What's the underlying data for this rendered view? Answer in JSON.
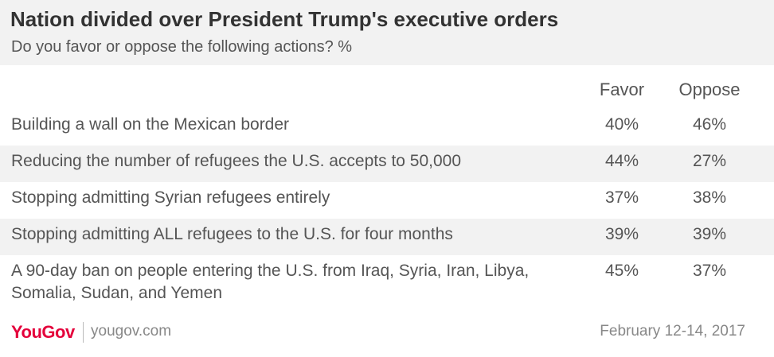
{
  "header": {
    "title": "Nation divided over President Trump's executive orders",
    "subtitle": "Do you favor or oppose the following actions? %"
  },
  "chart_data": {
    "type": "table",
    "columns": [
      "Favor",
      "Oppose"
    ],
    "rows": [
      {
        "label": "Building a wall on the Mexican border",
        "favor": "40%",
        "oppose": "46%"
      },
      {
        "label": "Reducing the number of refugees the U.S. accepts to 50,000",
        "favor": "44%",
        "oppose": "27%"
      },
      {
        "label": "Stopping admitting Syrian refugees entirely",
        "favor": "37%",
        "oppose": "38%"
      },
      {
        "label": "Stopping admitting ALL refugees to the U.S. for four months",
        "favor": "39%",
        "oppose": "39%"
      },
      {
        "label": "A 90-day ban on people entering the U.S. from Iraq, Syria, Iran, Libya, Somalia, Sudan, and Yemen",
        "favor": "45%",
        "oppose": "37%"
      }
    ]
  },
  "footer": {
    "logo": "YouGov",
    "site": "yougov.com",
    "date": "February 12-14, 2017"
  },
  "colors": {
    "brand": "#e4003b",
    "band": "#f2f2f2"
  }
}
